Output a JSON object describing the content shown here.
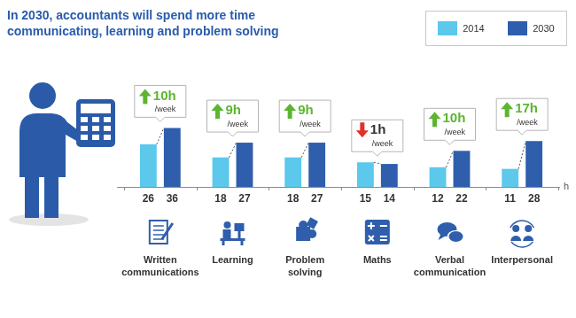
{
  "chart_data": {
    "type": "bar",
    "title": "In 2030, accountants will spend more time communicating, learning and problem solving",
    "categories": [
      "Written communications",
      "Learning",
      "Problem solving",
      "Maths",
      "Verbal communication",
      "Interpersonal"
    ],
    "series": [
      {
        "name": "2014",
        "color": "#5bc8ec",
        "values": [
          26,
          18,
          18,
          15,
          12,
          11
        ]
      },
      {
        "name": "2030",
        "color": "#2e5eac",
        "values": [
          36,
          27,
          27,
          14,
          22,
          28
        ]
      }
    ],
    "y_label": "h",
    "annotations": [
      {
        "text": "10h",
        "note": "/week"
      },
      {
        "text": "9h",
        "note": "/week"
      },
      {
        "text": "9h",
        "note": "/week"
      },
      {
        "text": "1h",
        "note": "/week"
      },
      {
        "text": "10h",
        "note": "/week"
      },
      {
        "text": "17h",
        "note": "/week"
      }
    ],
    "ylim": [
      0,
      60
    ],
    "yticks": [
      0,
      60
    ],
    "grid": false,
    "legend": "top-right",
    "data_labels": true,
    "tick_labels": "x"
  }
}
